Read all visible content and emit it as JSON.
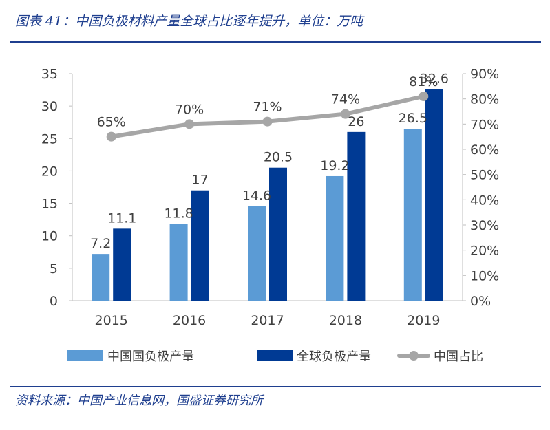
{
  "header": {
    "title": "图表 41：中国负极材料产量全球占比逐年提升，单位：万吨"
  },
  "footer": {
    "source": "资料来源：中国产业信息网，国盛证券研究所"
  },
  "colors": {
    "china_bar": "#5b9bd5",
    "global_bar": "#003a94",
    "share_line": "#a6a6a6",
    "rule": "#1f3f8f",
    "text": "#404040"
  },
  "chart_data": {
    "type": "bar",
    "categories": [
      "2015",
      "2016",
      "2017",
      "2018",
      "2019"
    ],
    "series": [
      {
        "name": "中国国负极产量",
        "type": "bar",
        "axis": "left",
        "values": [
          7.2,
          11.8,
          14.6,
          19.2,
          26.5
        ],
        "labels": [
          "7.2",
          "11.8",
          "14.6",
          "19.2",
          "26.5"
        ]
      },
      {
        "name": "全球负极产量",
        "type": "bar",
        "axis": "left",
        "values": [
          11.1,
          17,
          20.5,
          26,
          32.6
        ],
        "labels": [
          "11.1",
          "17",
          "20.5",
          "26",
          "32.6"
        ]
      },
      {
        "name": "中国占比",
        "type": "line",
        "axis": "right",
        "values": [
          65,
          70,
          71,
          74,
          81
        ],
        "labels": [
          "65%",
          "70%",
          "71%",
          "74%",
          "81%"
        ]
      }
    ],
    "y_left": {
      "ylim": [
        0,
        35
      ],
      "ticks": [
        "0",
        "5",
        "10",
        "15",
        "20",
        "25",
        "30",
        "35"
      ]
    },
    "y_right": {
      "ylim": [
        0,
        90
      ],
      "ticks": [
        "0%",
        "10%",
        "20%",
        "30%",
        "40%",
        "50%",
        "60%",
        "70%",
        "80%",
        "90%"
      ]
    },
    "grid": false,
    "legend_position": "bottom"
  }
}
